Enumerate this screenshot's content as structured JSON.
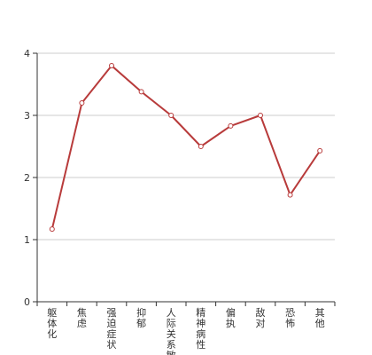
{
  "chart_data": {
    "type": "line",
    "title": "",
    "xlabel": "",
    "ylabel": "",
    "categories": [
      "躯体化",
      "焦虑",
      "强迫症状",
      "抑郁",
      "人际关系敏感",
      "精神病性",
      "偏执",
      "敌对",
      "恐怖",
      "其他"
    ],
    "series": [
      {
        "values": [
          1.17,
          3.2,
          3.8,
          3.38,
          3.0,
          2.5,
          2.83,
          3.0,
          1.72,
          2.43
        ]
      }
    ],
    "ylim": [
      0,
      4
    ],
    "yticks": [
      "0",
      "1",
      "2",
      "3",
      "4"
    ],
    "grid": true,
    "colors": {
      "line": "#b83b3b",
      "grid": "#cccccc",
      "axis": "#333333"
    }
  }
}
